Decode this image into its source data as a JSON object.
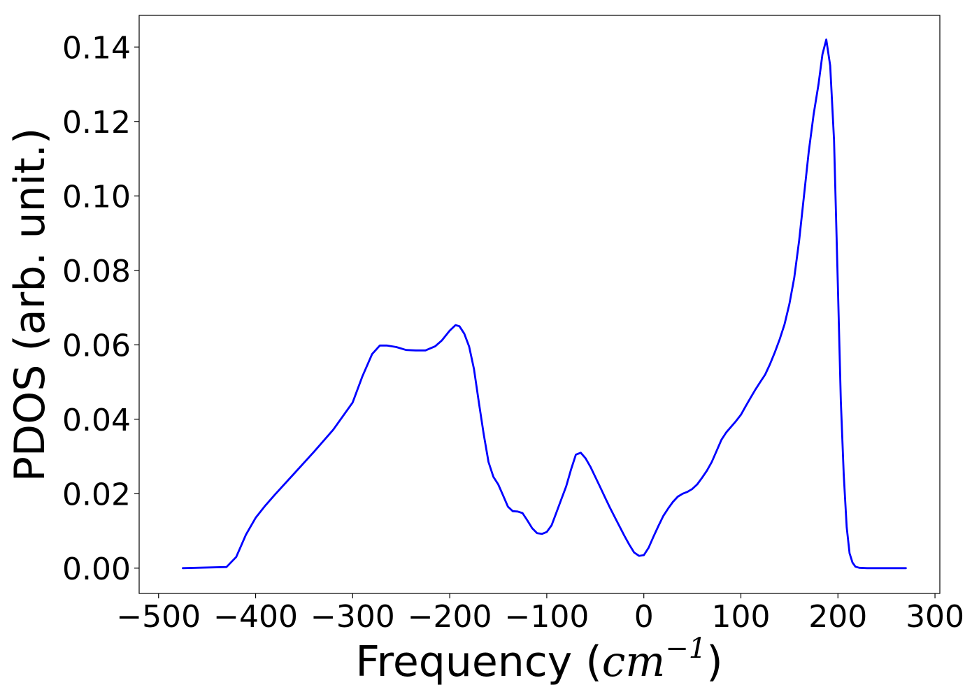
{
  "chart_data": {
    "type": "line",
    "xlabel_text": "Frequency (",
    "xlabel_math": "cm",
    "xlabel_sup": "−1",
    "xlabel_close": ")",
    "ylabel": "PDOS (arb. unit.)",
    "xlim": [
      -520,
      305
    ],
    "ylim": [
      -0.0068,
      0.1485
    ],
    "x_ticks": [
      -500,
      -400,
      -300,
      -200,
      -100,
      0,
      100,
      200,
      300
    ],
    "x_tick_labels": [
      "−500",
      "−400",
      "−300",
      "−200",
      "−100",
      "0",
      "100",
      "200",
      "300"
    ],
    "y_ticks": [
      0.0,
      0.02,
      0.04,
      0.06,
      0.08,
      0.1,
      0.12,
      0.14
    ],
    "y_tick_labels": [
      "0.00",
      "0.02",
      "0.04",
      "0.06",
      "0.08",
      "0.10",
      "0.12",
      "0.14"
    ],
    "grid": false,
    "series": [
      {
        "color": "#0000ff",
        "x": [
          -475,
          -430,
          -420,
          -410,
          -400,
          -390,
          -380,
          -360,
          -340,
          -320,
          -300,
          -290,
          -280,
          -272,
          -265,
          -255,
          -245,
          -235,
          -225,
          -215,
          -208,
          -200,
          -194,
          -190,
          -185,
          -180,
          -175,
          -170,
          -165,
          -160,
          -155,
          -150,
          -145,
          -140,
          -135,
          -130,
          -125,
          -120,
          -115,
          -110,
          -105,
          -100,
          -95,
          -90,
          -85,
          -80,
          -75,
          -70,
          -65,
          -60,
          -55,
          -50,
          -45,
          -40,
          -35,
          -30,
          -25,
          -20,
          -15,
          -10,
          -5,
          0,
          5,
          10,
          15,
          20,
          25,
          30,
          35,
          40,
          45,
          50,
          55,
          60,
          65,
          70,
          75,
          80,
          85,
          90,
          95,
          100,
          105,
          110,
          115,
          120,
          125,
          130,
          135,
          140,
          145,
          150,
          155,
          160,
          165,
          170,
          175,
          180,
          184,
          188,
          192,
          196,
          200,
          203,
          206,
          209,
          212,
          215,
          218,
          222,
          230,
          270
        ],
        "y": [
          0.0,
          0.0003,
          0.003,
          0.009,
          0.0135,
          0.0168,
          0.0198,
          0.0255,
          0.0312,
          0.0372,
          0.0445,
          0.0515,
          0.0575,
          0.0598,
          0.0598,
          0.0594,
          0.0586,
          0.0585,
          0.0585,
          0.0596,
          0.0612,
          0.0638,
          0.0653,
          0.065,
          0.063,
          0.0595,
          0.0535,
          0.0445,
          0.036,
          0.0285,
          0.0245,
          0.0225,
          0.0195,
          0.0165,
          0.0153,
          0.0152,
          0.0148,
          0.0128,
          0.0107,
          0.0094,
          0.0092,
          0.0097,
          0.0115,
          0.015,
          0.0185,
          0.022,
          0.0265,
          0.0305,
          0.031,
          0.0295,
          0.0272,
          0.0245,
          0.0218,
          0.019,
          0.0163,
          0.0137,
          0.0112,
          0.0087,
          0.0063,
          0.0042,
          0.0033,
          0.0035,
          0.0055,
          0.0085,
          0.0113,
          0.014,
          0.016,
          0.0178,
          0.0192,
          0.02,
          0.0205,
          0.0213,
          0.0225,
          0.0243,
          0.0262,
          0.0285,
          0.0315,
          0.0345,
          0.0365,
          0.038,
          0.0395,
          0.0412,
          0.0435,
          0.0458,
          0.048,
          0.05,
          0.052,
          0.0548,
          0.058,
          0.0615,
          0.0655,
          0.071,
          0.078,
          0.088,
          0.1,
          0.112,
          0.122,
          0.13,
          0.138,
          0.142,
          0.135,
          0.115,
          0.075,
          0.045,
          0.025,
          0.011,
          0.004,
          0.0015,
          0.0004,
          0.0001,
          0.0,
          0.0
        ]
      }
    ]
  }
}
